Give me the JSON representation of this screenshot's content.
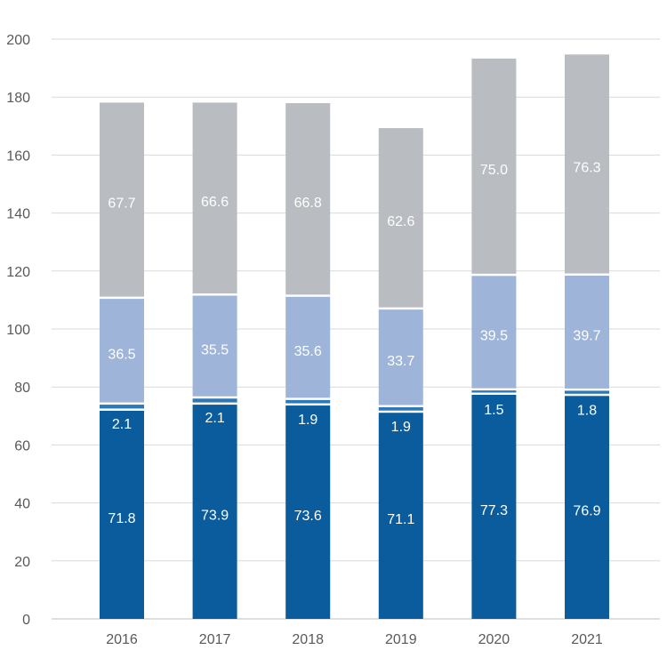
{
  "chart_data": {
    "type": "bar",
    "stacked": true,
    "categories": [
      "2016",
      "2017",
      "2018",
      "2019",
      "2020",
      "2021"
    ],
    "series": [
      {
        "values": [
          71.8,
          73.9,
          73.6,
          71.1,
          77.3,
          76.9
        ],
        "color": "#0a5c9c"
      },
      {
        "values": [
          2.1,
          2.1,
          1.9,
          1.9,
          1.5,
          1.8
        ],
        "color": "#2f78b6"
      },
      {
        "values": [
          36.5,
          35.5,
          35.6,
          33.7,
          39.5,
          39.7
        ],
        "color": "#9eb5d9"
      },
      {
        "values": [
          67.7,
          66.6,
          66.8,
          62.6,
          75.0,
          76.3
        ],
        "color": "#b9bcc0"
      }
    ],
    "value_labels": [
      [
        "71.8",
        "73.9",
        "73.6",
        "71.1",
        "77.3",
        "76.9"
      ],
      [
        "2.1",
        "2.1",
        "1.9",
        "1.9",
        "1.5",
        "1.8"
      ],
      [
        "36.5",
        "35.5",
        "35.6",
        "33.7",
        "39.5",
        "39.7"
      ],
      [
        "67.7",
        "66.6",
        "66.8",
        "62.6",
        "75.0",
        "76.3"
      ]
    ],
    "ylim": [
      0,
      200
    ],
    "yticks": [
      "0",
      "20",
      "40",
      "60",
      "80",
      "100",
      "120",
      "140",
      "160",
      "180",
      "200"
    ],
    "grid": true,
    "gridColor": "#d9d9d9",
    "title": "",
    "xlabel": "",
    "ylabel": ""
  }
}
